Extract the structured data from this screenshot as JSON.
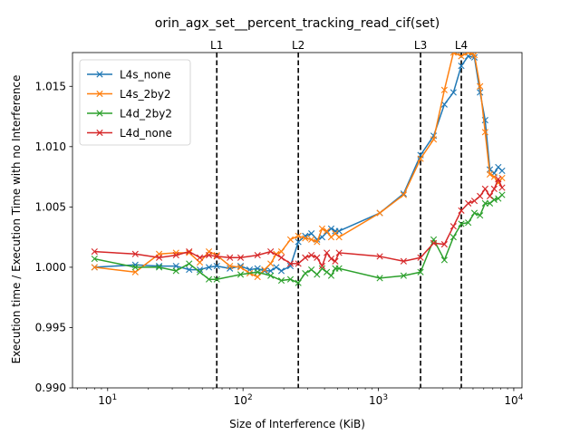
{
  "chart_data": {
    "type": "line",
    "title": "orin_agx_set__percent_tracking_read_cif(set)",
    "xlabel": "Size of Interference (KiB)",
    "ylabel": "Execution time / Execution Time with no Interference",
    "xscale": "log",
    "xlim": [
      5.5,
      11500
    ],
    "ylim": [
      0.99,
      1.0178
    ],
    "x_ticks": [
      {
        "value": 10,
        "label": "10",
        "sup": "1"
      },
      {
        "value": 100,
        "label": "10",
        "sup": "2"
      },
      {
        "value": 1000,
        "label": "10",
        "sup": "3"
      },
      {
        "value": 10000,
        "label": "10",
        "sup": "4"
      }
    ],
    "y_ticks": [
      {
        "value": 0.99,
        "label": "0.990"
      },
      {
        "value": 0.995,
        "label": "0.995"
      },
      {
        "value": 1.0,
        "label": "1.000"
      },
      {
        "value": 1.005,
        "label": "1.005"
      },
      {
        "value": 1.01,
        "label": "1.010"
      },
      {
        "value": 1.015,
        "label": "1.015"
      }
    ],
    "vlines": [
      {
        "label": "L1",
        "x": 64
      },
      {
        "label": "L2",
        "x": 256
      },
      {
        "label": "L3",
        "x": 2048
      },
      {
        "label": "L4",
        "x": 4096
      }
    ],
    "legend_position": "upper-left",
    "grid": false,
    "series": [
      {
        "name": "L4s_none",
        "color": "#1f77b4",
        "x": [
          8,
          16,
          24,
          32,
          40,
          48,
          56,
          64,
          80,
          96,
          112,
          128,
          144,
          160,
          176,
          192,
          224,
          256,
          288,
          320,
          352,
          384,
          416,
          448,
          480,
          512,
          1024,
          1536,
          2048,
          2560,
          3072,
          3584,
          4096,
          4608,
          5120,
          5632,
          6144,
          6656,
          7168,
          7680,
          8192
        ],
        "y": [
          1.0,
          1.0002,
          1.0001,
          1.0001,
          0.9998,
          0.9998,
          1.0,
          1.0001,
          0.9999,
          1.0001,
          0.9998,
          0.9999,
          0.9997,
          0.9997,
          1.0,
          0.9997,
          1.0001,
          1.0021,
          1.0026,
          1.0028,
          1.0023,
          1.0025,
          1.0029,
          1.0032,
          1.003,
          1.003,
          1.0045,
          1.0061,
          1.0093,
          1.0109,
          1.0135,
          1.0145,
          1.0167,
          1.0175,
          1.0174,
          1.0145,
          1.0122,
          1.0081,
          1.0078,
          1.0083,
          1.008
        ]
      },
      {
        "name": "L4s_2by2",
        "color": "#ff7f0e",
        "x": [
          8,
          16,
          24,
          32,
          40,
          48,
          56,
          64,
          80,
          96,
          112,
          128,
          144,
          160,
          176,
          192,
          224,
          256,
          288,
          320,
          352,
          384,
          416,
          448,
          480,
          512,
          1024,
          1536,
          2048,
          2560,
          3072,
          3584,
          4096,
          4608,
          5120,
          5632,
          6144,
          6656,
          7168,
          7680,
          8192
        ],
        "y": [
          1.0,
          0.9996,
          1.0011,
          1.0012,
          1.0012,
          1.0004,
          1.0013,
          1.001,
          1.0001,
          1.0,
          0.9995,
          0.9992,
          0.9998,
          1.0003,
          1.0011,
          1.0013,
          1.0023,
          1.0026,
          1.0024,
          1.0023,
          1.0021,
          1.0032,
          1.003,
          1.0025,
          1.0028,
          1.0025,
          1.0045,
          1.006,
          1.009,
          1.0106,
          1.0147,
          1.0178,
          1.0175,
          1.0178,
          1.0176,
          1.015,
          1.0112,
          1.0077,
          1.0075,
          1.007,
          1.0074
        ]
      },
      {
        "name": "L4d_2by2",
        "color": "#2ca02c",
        "x": [
          8,
          16,
          24,
          32,
          40,
          48,
          56,
          64,
          96,
          128,
          160,
          192,
          224,
          256,
          288,
          320,
          352,
          384,
          416,
          448,
          480,
          512,
          1024,
          1536,
          2048,
          2560,
          3072,
          3584,
          4096,
          4608,
          5120,
          5632,
          6144,
          6656,
          7168,
          7680,
          8192
        ],
        "y": [
          1.0007,
          1.0,
          1.0,
          0.9997,
          1.0003,
          0.9996,
          0.999,
          0.999,
          0.9994,
          0.9996,
          0.9993,
          0.9989,
          0.999,
          0.9987,
          0.9995,
          0.9998,
          0.9994,
          0.9999,
          0.9996,
          0.9993,
          0.9999,
          0.9999,
          0.9991,
          0.9993,
          0.9996,
          1.0023,
          1.0006,
          1.0025,
          1.0036,
          1.0037,
          1.0045,
          1.0043,
          1.0053,
          1.0053,
          1.0056,
          1.0057,
          1.006
        ]
      },
      {
        "name": "L4d_none",
        "color": "#d62728",
        "x": [
          8,
          16,
          24,
          32,
          40,
          48,
          56,
          64,
          80,
          96,
          128,
          160,
          192,
          224,
          256,
          288,
          320,
          352,
          384,
          416,
          448,
          480,
          512,
          1024,
          1536,
          2048,
          2560,
          3072,
          3584,
          4096,
          4608,
          5120,
          5632,
          6144,
          6656,
          7168,
          7680,
          8192
        ],
        "y": [
          1.0013,
          1.0011,
          1.0008,
          1.001,
          1.0013,
          1.0008,
          1.001,
          1.0009,
          1.0008,
          1.0008,
          1.001,
          1.0013,
          1.0008,
          1.0003,
          1.0003,
          1.0008,
          1.001,
          1.0008,
          1.0001,
          1.0012,
          1.0007,
          1.0005,
          1.0012,
          1.0009,
          1.0005,
          1.0008,
          1.002,
          1.0019,
          1.0034,
          1.0047,
          1.0053,
          1.0055,
          1.0059,
          1.0065,
          1.0059,
          1.0065,
          1.0073,
          1.0066
        ]
      }
    ]
  }
}
